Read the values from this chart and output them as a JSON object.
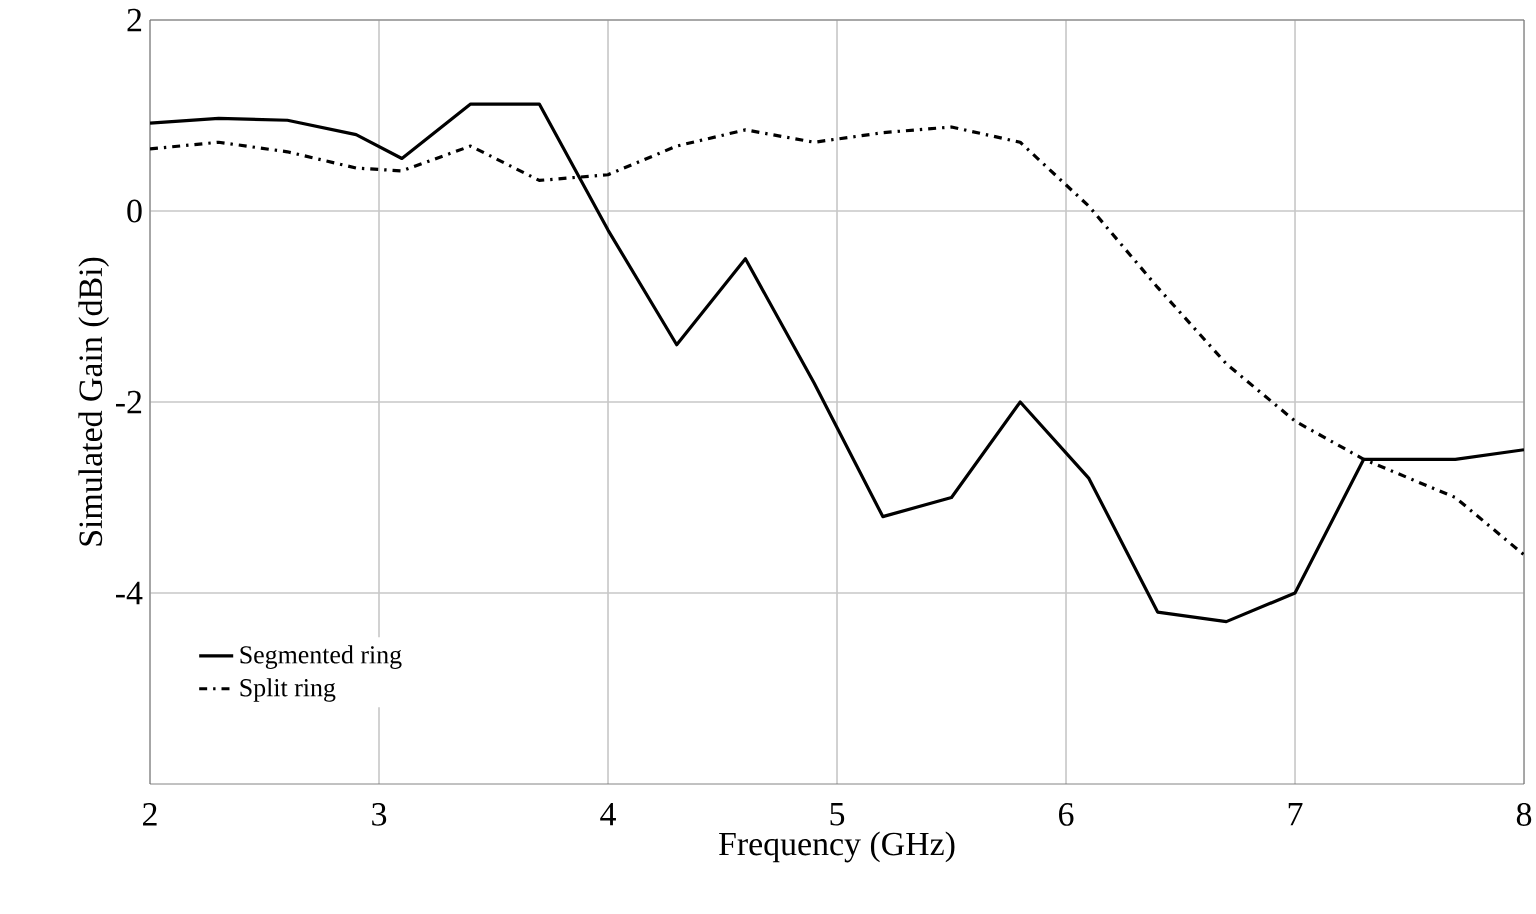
{
  "chart_data": {
    "type": "line",
    "xlabel": "Frequency (GHz)",
    "ylabel": "Simulated Gain (dBi)",
    "xlim": [
      2,
      8
    ],
    "xticks": [
      2,
      3,
      4,
      5,
      6,
      7,
      8
    ],
    "ylim": [
      -6,
      2
    ],
    "yticks": [
      -4,
      -2,
      0,
      2
    ],
    "grid": true,
    "legend": "bottom left",
    "series": [
      {
        "name": "Segmented ring",
        "color": "#000000",
        "line_style": "solid",
        "x": [
          2,
          2.3,
          2.6,
          2.9,
          3.1,
          3.4,
          3.7,
          4.0,
          4.3,
          4.6,
          4.9,
          5.2,
          5.5,
          5.8,
          6.1,
          6.4,
          6.7,
          7.0,
          7.3,
          7.7,
          8
        ],
        "values": [
          0.92,
          0.97,
          0.95,
          0.8,
          0.55,
          1.12,
          1.12,
          -0.2,
          -1.4,
          -0.5,
          -1.8,
          -3.2,
          -3.0,
          -2.0,
          -2.8,
          -4.2,
          -4.3,
          -4.0,
          -2.6,
          -2.6,
          -2.5
        ]
      },
      {
        "name": "Split ring",
        "color": "#000000",
        "line_style": "dashdot",
        "x": [
          2,
          2.3,
          2.6,
          2.9,
          3.1,
          3.4,
          3.7,
          4.0,
          4.3,
          4.6,
          4.9,
          5.2,
          5.5,
          5.8,
          6.1,
          6.4,
          6.7,
          7.0,
          7.3,
          7.7,
          8
        ],
        "values": [
          0.65,
          0.72,
          0.62,
          0.45,
          0.42,
          0.68,
          0.32,
          0.38,
          0.68,
          0.85,
          0.72,
          0.82,
          0.88,
          0.72,
          0.05,
          -0.8,
          -1.6,
          -2.2,
          -2.6,
          -3.0,
          -3.6
        ]
      }
    ]
  }
}
